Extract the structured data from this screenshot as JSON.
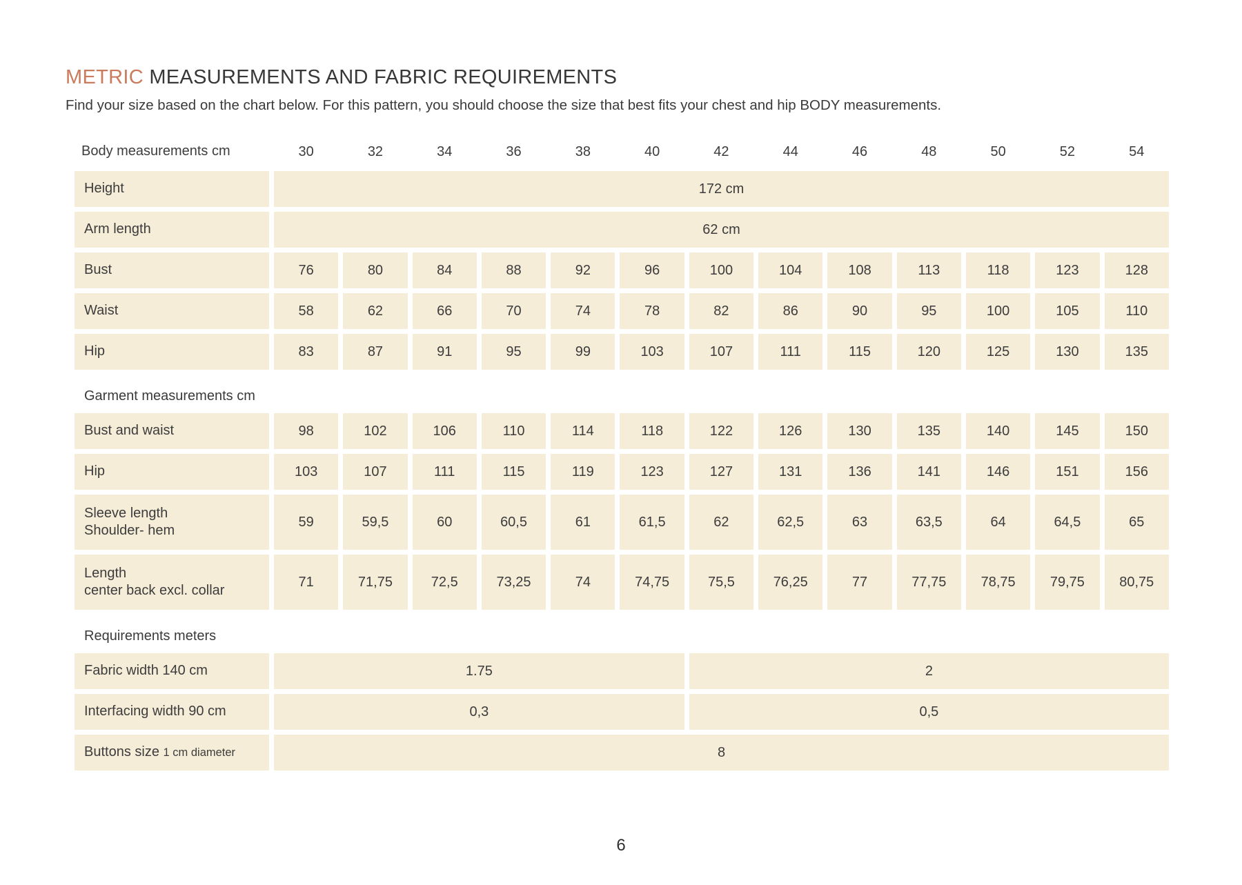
{
  "page": {
    "title_highlight": "METRIC",
    "title_rest": " MEASUREMENTS AND FABRIC REQUIREMENTS",
    "intro": "Find your size based on the chart below. For this pattern, you should choose the size that best fits your chest and hip BODY measurements.",
    "page_number": "6",
    "accent_color": "#c97b5c",
    "cell_background_color": "#f6edd9"
  },
  "table": {
    "header_label": "Body measurements cm",
    "sizes": [
      "30",
      "32",
      "34",
      "36",
      "38",
      "40",
      "42",
      "44",
      "46",
      "48",
      "50",
      "52",
      "54"
    ],
    "body_rows": [
      {
        "label": "Height",
        "span_value": "172 cm"
      },
      {
        "label": "Arm length",
        "span_value": "62 cm"
      },
      {
        "label": "Bust",
        "values": [
          "76",
          "80",
          "84",
          "88",
          "92",
          "96",
          "100",
          "104",
          "108",
          "113",
          "118",
          "123",
          "128"
        ]
      },
      {
        "label": "Waist",
        "values": [
          "58",
          "62",
          "66",
          "70",
          "74",
          "78",
          "82",
          "86",
          "90",
          "95",
          "100",
          "105",
          "110"
        ]
      },
      {
        "label": "Hip",
        "values": [
          "83",
          "87",
          "91",
          "95",
          "99",
          "103",
          "107",
          "111",
          "115",
          "120",
          "125",
          "130",
          "135"
        ]
      }
    ],
    "garment_section_label": "Garment measurements cm",
    "garment_rows": [
      {
        "label": "Bust and waist",
        "values": [
          "98",
          "102",
          "106",
          "110",
          "114",
          "118",
          "122",
          "126",
          "130",
          "135",
          "140",
          "145",
          "150"
        ]
      },
      {
        "label": "Hip",
        "values": [
          "103",
          "107",
          "111",
          "115",
          "119",
          "123",
          "127",
          "131",
          "136",
          "141",
          "146",
          "151",
          "156"
        ]
      },
      {
        "label": "Sleeve length",
        "label2": "Shoulder- hem",
        "values": [
          "59",
          "59,5",
          "60",
          "60,5",
          "61",
          "61,5",
          "62",
          "62,5",
          "63",
          "63,5",
          "64",
          "64,5",
          "65"
        ]
      },
      {
        "label": "Length",
        "label2": "center back excl. collar",
        "values": [
          "71",
          "71,75",
          "72,5",
          "73,25",
          "74",
          "74,75",
          "75,5",
          "76,25",
          "77",
          "77,75",
          "78,75",
          "79,75",
          "80,75"
        ]
      }
    ],
    "requirements_section_label": "Requirements meters",
    "requirements_rows": [
      {
        "label": "Fabric width 140 cm",
        "left_value": "1.75",
        "right_value": "2",
        "left_colspan": 6
      },
      {
        "label": "Interfacing width 90 cm",
        "left_value": "0,3",
        "right_value": "0,5",
        "left_colspan": 6
      },
      {
        "label_main": "Buttons size",
        "label_small": "1 cm diameter",
        "full_value": "8"
      }
    ]
  }
}
